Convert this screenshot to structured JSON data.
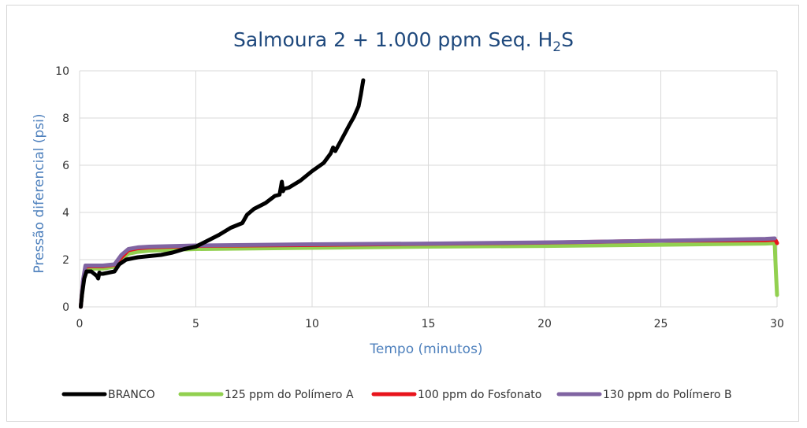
{
  "chart_data": {
    "type": "line",
    "title": "Salmoura 2 + 1.000 ppm Seq. H",
    "title_sub": "2",
    "title_end": "S",
    "xlabel": "Tempo (minutos)",
    "ylabel": "Pressão diferencial (psi)",
    "xlim": [
      0,
      30
    ],
    "ylim": [
      0,
      10
    ],
    "xticks": [
      "0",
      "5",
      "10",
      "15",
      "20",
      "25",
      "30"
    ],
    "yticks": [
      "0",
      "2",
      "4",
      "6",
      "8",
      "10"
    ],
    "grid": true,
    "legend_position": "bottom",
    "series": [
      {
        "name": "BRANCO",
        "color": "#000000",
        "x": [
          0.05,
          0.1,
          0.2,
          0.3,
          0.5,
          0.75,
          0.8,
          0.85,
          0.9,
          1.0,
          1.5,
          1.7,
          2.0,
          2.5,
          3.0,
          3.5,
          4.0,
          4.5,
          5.0,
          5.5,
          6.0,
          6.5,
          7.0,
          7.2,
          7.5,
          8.0,
          8.4,
          8.6,
          8.7,
          8.75,
          8.8,
          9.0,
          9.5,
          10.0,
          10.5,
          10.8,
          10.9,
          11.0,
          11.3,
          11.6,
          11.8,
          12.0,
          12.1,
          12.2
        ],
        "y": [
          0.0,
          0.5,
          1.2,
          1.5,
          1.5,
          1.3,
          1.2,
          1.45,
          1.4,
          1.4,
          1.5,
          1.8,
          2.0,
          2.1,
          2.15,
          2.2,
          2.3,
          2.45,
          2.55,
          2.8,
          3.05,
          3.35,
          3.55,
          3.9,
          4.15,
          4.4,
          4.7,
          4.75,
          5.3,
          4.9,
          5.0,
          5.05,
          5.35,
          5.75,
          6.1,
          6.5,
          6.75,
          6.6,
          7.15,
          7.7,
          8.05,
          8.5,
          9.0,
          9.6
        ]
      },
      {
        "name": "125 ppm do Polímero A",
        "color": "#92d050",
        "x": [
          0.05,
          0.15,
          0.25,
          0.5,
          1.0,
          1.5,
          1.8,
          2.1,
          2.5,
          3.0,
          5.0,
          10.0,
          15.0,
          20.0,
          25.0,
          29.5,
          29.9,
          29.95,
          30.0
        ],
        "y": [
          0.0,
          1.0,
          1.6,
          1.62,
          1.62,
          1.7,
          2.0,
          2.25,
          2.33,
          2.38,
          2.45,
          2.5,
          2.55,
          2.58,
          2.63,
          2.68,
          2.7,
          1.5,
          0.5
        ]
      },
      {
        "name": "100 ppm do Fosfonato",
        "color": "#e8141c",
        "x": [
          0.05,
          0.15,
          0.25,
          0.5,
          1.0,
          1.5,
          1.8,
          2.1,
          2.5,
          3.0,
          5.0,
          10.0,
          15.0,
          20.0,
          25.0,
          29.5,
          29.9,
          29.95,
          30.0
        ],
        "y": [
          0.0,
          1.1,
          1.7,
          1.72,
          1.72,
          1.78,
          2.1,
          2.4,
          2.48,
          2.52,
          2.58,
          2.62,
          2.67,
          2.72,
          2.8,
          2.82,
          2.84,
          2.8,
          2.7
        ]
      },
      {
        "name": "130 ppm do Polímero B",
        "color": "#8064a2",
        "x": [
          0.05,
          0.15,
          0.25,
          0.5,
          1.0,
          1.5,
          1.8,
          2.1,
          2.5,
          3.0,
          5.0,
          10.0,
          15.0,
          20.0,
          25.0,
          29.5,
          29.9
        ],
        "y": [
          0.0,
          1.15,
          1.75,
          1.75,
          1.75,
          1.8,
          2.2,
          2.45,
          2.52,
          2.55,
          2.6,
          2.65,
          2.68,
          2.73,
          2.8,
          2.88,
          2.9
        ]
      }
    ]
  }
}
